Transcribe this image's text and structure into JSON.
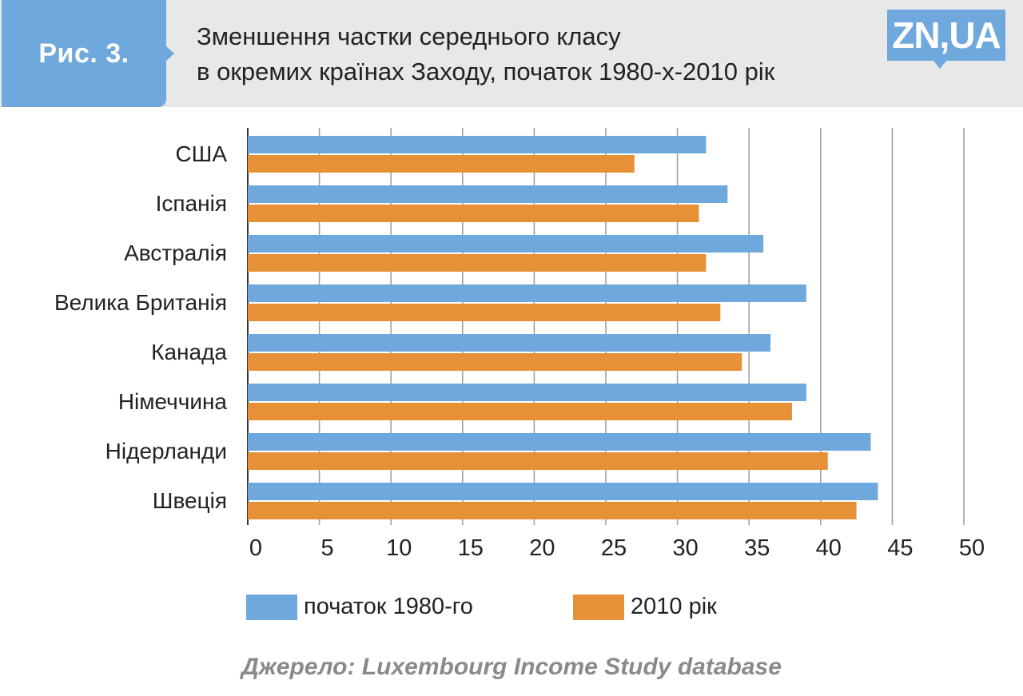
{
  "header": {
    "figure_label": "Рис. 3.",
    "title_line1": "Зменшення частки середнього класу",
    "title_line2": "в окремих країнах Заходу, початок 1980-х-2010 рік",
    "logo_text": "ZN,UA"
  },
  "colors": {
    "series_1980": "#6fa8dc",
    "series_2010": "#e69138",
    "header_bg": "#e8e8e8",
    "accent": "#6fa8dc"
  },
  "chart_data": {
    "type": "bar",
    "orientation": "horizontal",
    "categories": [
      "США",
      "Іспанія",
      "Австралія",
      "Велика Британія",
      "Канада",
      "Німеччина",
      "Нідерланди",
      "Швеція"
    ],
    "series": [
      {
        "name": "початок 1980-го",
        "values": [
          32,
          33.5,
          36,
          39,
          36.5,
          39,
          43.5,
          44
        ]
      },
      {
        "name": "2010 рік",
        "values": [
          27,
          31.5,
          32,
          33,
          34.5,
          38,
          40.5,
          42.5
        ]
      }
    ],
    "xlim": [
      0,
      50
    ],
    "xticks": [
      "0",
      "5",
      "10",
      "15",
      "20",
      "25",
      "30",
      "35",
      "40",
      "45",
      "50"
    ],
    "grid": true,
    "legend_position": "bottom"
  },
  "source": "Джерело: Luxembourg Income Study database"
}
